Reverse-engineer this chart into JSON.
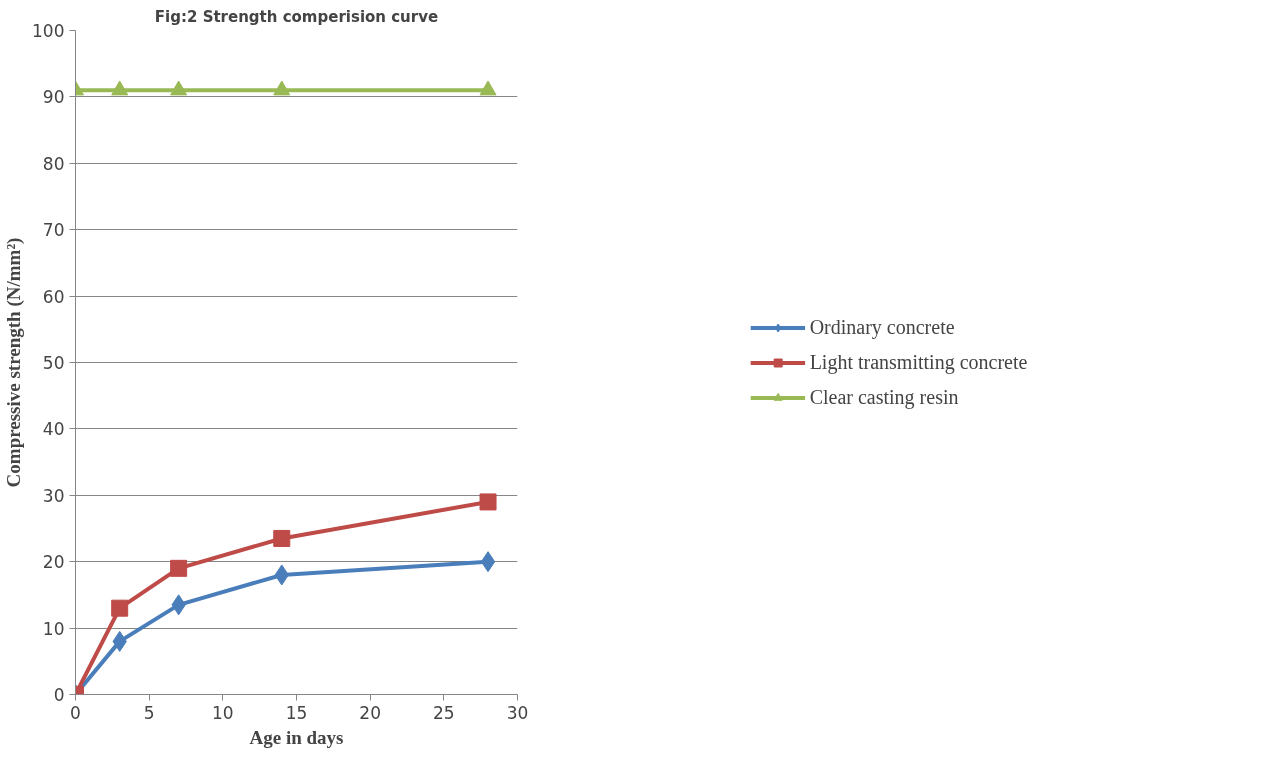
{
  "chart_data": {
    "type": "line",
    "title": "Fig:2 Strength comperision curve",
    "xlabel": "Age in days",
    "ylabel": "Compressive strength (N/mm²)",
    "x": [
      0,
      3,
      7,
      14,
      28
    ],
    "series": [
      {
        "name": "Ordinary concrete",
        "color": "#4a7ebb",
        "marker": "diamond",
        "values": [
          0,
          8,
          13.5,
          18,
          20
        ]
      },
      {
        "name": "Light transmitting concrete",
        "color": "#be4b48",
        "marker": "square",
        "values": [
          0,
          13,
          19,
          23.5,
          29
        ]
      },
      {
        "name": "Clear casting resin",
        "color": "#98b954",
        "marker": "triangle",
        "values": [
          91,
          91,
          91,
          91,
          91
        ]
      }
    ],
    "xlim": [
      0,
      30
    ],
    "xticks": [
      0,
      5,
      10,
      15,
      20,
      25,
      30
    ],
    "ylim": [
      0,
      100
    ],
    "yticks": [
      0,
      10,
      20,
      30,
      40,
      50,
      60,
      70,
      80,
      90,
      100
    ],
    "grid": "y",
    "legend": "right",
    "line_style": "solid"
  }
}
